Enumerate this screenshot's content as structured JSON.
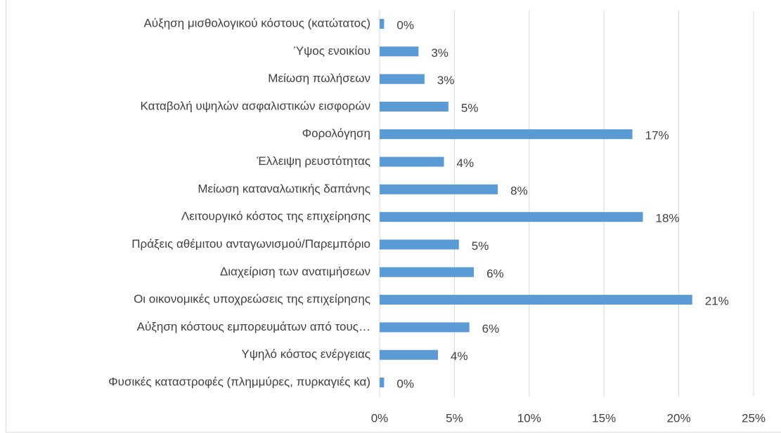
{
  "chart_data": {
    "type": "barh",
    "categories": [
      "Αύξηση μισθολογικού κόστους (κατώτατος)",
      "Ύψος ενοικίου",
      "Μείωση πωλήσεων",
      "Καταβολή υψηλών ασφαλιστικών εισφορών",
      "Φορολόγηση",
      "Έλλειψη ρευστότητας",
      "Μείωση καταναλωτικής δαπάνης",
      "Λειτουργικό κόστος της επιχείρησης",
      "Πράξεις αθέμιτου ανταγωνισμού/Παρεμπόριο",
      "Διαχείριση των ανατιμήσεων",
      "Οι οικονομικές υποχρεώσεις της επιχείρησης",
      "Αύξηση κόστους εμπορευμάτων από τους…",
      "Υψηλό κόστος ενέργειας",
      "Φυσικές καταστροφές (πλημμύρες, πυρκαγιές κα)"
    ],
    "values": [
      0.3,
      2.6,
      3.0,
      4.6,
      16.9,
      4.3,
      7.9,
      17.6,
      5.3,
      6.3,
      20.9,
      6.0,
      3.9,
      0.3
    ],
    "value_labels": [
      "0%",
      "3%",
      "3%",
      "5%",
      "17%",
      "4%",
      "8%",
      "18%",
      "5%",
      "6%",
      "21%",
      "6%",
      "4%",
      "0%"
    ],
    "color": "#5b9bd5",
    "xlim": [
      0,
      25
    ],
    "xticks": [
      {
        "value": 0,
        "label": "0%"
      },
      {
        "value": 5,
        "label": "5%"
      },
      {
        "value": 10,
        "label": "10%"
      },
      {
        "value": 15,
        "label": "15%"
      },
      {
        "value": 20,
        "label": "20%"
      },
      {
        "value": 25,
        "label": "25%"
      }
    ],
    "grid": true
  }
}
